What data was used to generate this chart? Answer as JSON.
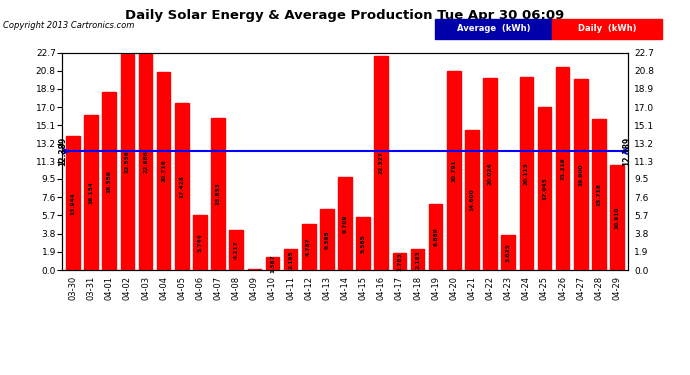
{
  "title": "Daily Solar Energy & Average Production Tue Apr 30 06:09",
  "copyright": "Copyright 2013 Cartronics.com",
  "average_value": 12.389,
  "bar_color": "#FF0000",
  "avg_line_color": "#0000FF",
  "background_color": "#FFFFFF",
  "plot_bg_color": "#FFFFFF",
  "grid_color": "#999999",
  "categories": [
    "03-30",
    "03-31",
    "04-01",
    "04-02",
    "04-03",
    "04-04",
    "04-05",
    "04-06",
    "04-07",
    "04-08",
    "04-09",
    "04-10",
    "04-11",
    "04-12",
    "04-13",
    "04-14",
    "04-15",
    "04-16",
    "04-17",
    "04-18",
    "04-19",
    "04-20",
    "04-21",
    "04-22",
    "04-23",
    "04-24",
    "04-25",
    "04-26",
    "04-27",
    "04-28",
    "04-29"
  ],
  "values": [
    13.944,
    16.154,
    18.558,
    22.556,
    22.686,
    20.716,
    17.428,
    5.744,
    15.853,
    4.217,
    0.059,
    1.367,
    2.195,
    4.787,
    6.395,
    9.709,
    5.565,
    22.327,
    1.763,
    2.183,
    6.889,
    20.791,
    14.6,
    20.024,
    3.625,
    20.113,
    17.045,
    21.219,
    19.9,
    15.718,
    10.91
  ],
  "yticks": [
    0.0,
    1.9,
    3.8,
    5.7,
    7.6,
    9.5,
    11.3,
    13.2,
    15.1,
    17.0,
    18.9,
    20.8,
    22.7
  ],
  "legend_avg_label": "Average  (kWh)",
  "legend_daily_label": "Daily  (kWh)",
  "avg_label": "12.389",
  "ymax": 22.7
}
